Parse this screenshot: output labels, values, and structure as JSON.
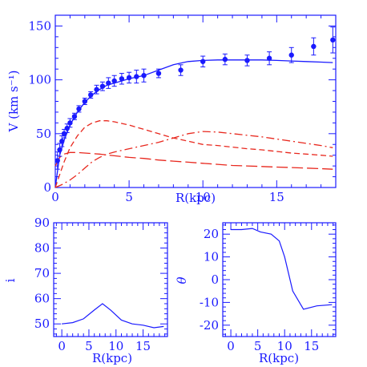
{
  "colors": {
    "axis": "#1a1aff",
    "data": "#1a1aff",
    "model": "#e8281e"
  },
  "chart_data": [
    {
      "type": "scatter",
      "panel": "rotation-curve",
      "xlabel": "R(kpc)",
      "ylabel": "V (km s⁻¹)",
      "xlim": [
        0,
        19
      ],
      "ylim": [
        0,
        160
      ],
      "xticks": [
        "0",
        "5",
        "10",
        "15"
      ],
      "yticks": [
        "0",
        "50",
        "100",
        "150"
      ],
      "grid": false,
      "observed": {
        "x": [
          0.15,
          0.3,
          0.45,
          0.6,
          0.8,
          1.0,
          1.3,
          1.6,
          2.0,
          2.4,
          2.8,
          3.2,
          3.6,
          4.0,
          4.5,
          5.0,
          5.5,
          6.0,
          7.0,
          8.5,
          10.0,
          11.5,
          13.0,
          14.5,
          16.0,
          17.5,
          18.8
        ],
        "y": [
          25,
          35,
          43,
          50,
          55,
          60,
          66,
          73,
          80,
          86,
          91,
          94,
          97,
          99,
          101,
          102,
          103,
          104,
          106,
          109,
          117,
          119,
          118,
          120,
          123,
          131,
          137
        ],
        "err": [
          8,
          6,
          5,
          4,
          4,
          4,
          3,
          3,
          3,
          3,
          4,
          4,
          5,
          5,
          5,
          5,
          6,
          6,
          4,
          5,
          5,
          5,
          5,
          6,
          7,
          8,
          12
        ]
      },
      "models": [
        {
          "style": "solid",
          "color": "#1a1aff",
          "x": [
            0,
            0.3,
            0.6,
            1.0,
            1.5,
            2.0,
            2.5,
            3.0,
            3.5,
            4.0,
            5.0,
            6.0,
            7.0,
            8.0,
            9.0,
            10.0,
            11.0,
            12.0,
            13.0,
            14.0,
            15.0,
            16.0,
            17.0,
            18.0,
            18.8
          ],
          "y": [
            0,
            30,
            44,
            58,
            70,
            79,
            86,
            91,
            95,
            97,
            101,
            104,
            109,
            114,
            117,
            118,
            118.5,
            118.5,
            118.5,
            118.5,
            118,
            117.5,
            117,
            116.5,
            116
          ]
        },
        {
          "style": "dashed",
          "color": "#e8281e",
          "x": [
            0,
            0.3,
            0.6,
            1.0,
            1.5,
            2.0,
            2.5,
            3.0,
            3.5,
            4.0,
            5.0,
            6.0,
            7.0,
            8.0,
            9.0,
            10.0,
            11.0,
            12.0,
            13.0,
            14.0,
            15.0,
            16.0,
            17.0,
            18.0,
            18.8
          ],
          "y": [
            0,
            12,
            24,
            37,
            48,
            56,
            60,
            62,
            62,
            61,
            58,
            54,
            50,
            46,
            43,
            40,
            39,
            37.5,
            36,
            35,
            33.5,
            32,
            31,
            30,
            29
          ]
        },
        {
          "style": "long-dash",
          "color": "#e8281e",
          "x": [
            0,
            0.3,
            0.6,
            1.0,
            1.5,
            2.0,
            2.5,
            3.0,
            4.0,
            5.0,
            6.0,
            7.0,
            8.0,
            9.0,
            10.0,
            11.0,
            12.0,
            13.0,
            14.0,
            15.0,
            16.0,
            17.0,
            18.0,
            18.8
          ],
          "y": [
            20,
            28,
            31,
            32.5,
            32.5,
            32,
            31.5,
            31,
            29.5,
            28,
            27,
            25.5,
            24.5,
            23.5,
            22.5,
            21.5,
            20.5,
            20,
            19.5,
            19,
            18.5,
            18,
            17.5,
            17
          ]
        },
        {
          "style": "dash-dot",
          "color": "#e8281e",
          "x": [
            0,
            0.5,
            1.0,
            1.5,
            2.0,
            2.5,
            3.0,
            3.5,
            4.0,
            5.0,
            6.0,
            7.0,
            8.0,
            9.0,
            10.0,
            11.0,
            12.0,
            13.0,
            14.0,
            15.0,
            16.0,
            17.0,
            18.0,
            18.8
          ],
          "y": [
            0,
            3,
            7,
            12,
            18,
            24,
            28,
            31,
            33,
            36,
            39,
            42,
            46,
            50,
            52,
            51.5,
            50,
            48.5,
            47,
            45,
            43,
            41,
            39,
            37
          ]
        }
      ]
    },
    {
      "type": "line",
      "panel": "inclination",
      "xlabel": "R(kpc)",
      "ylabel": "i",
      "xlim": [
        -1.5,
        19.5
      ],
      "ylim": [
        45,
        90
      ],
      "xticks": [
        "0",
        "5",
        "10",
        "15"
      ],
      "yticks": [
        "50",
        "60",
        "70",
        "80",
        "90"
      ],
      "grid": false,
      "x": [
        0,
        2,
        4,
        6,
        7.5,
        9,
        11,
        13,
        15,
        17,
        18.8
      ],
      "y": [
        50,
        50.5,
        52,
        55.5,
        58,
        55.5,
        51.5,
        50,
        49.5,
        48.5,
        49
      ]
    },
    {
      "type": "line",
      "panel": "position-angle",
      "xlabel": "R(kpc)",
      "ylabel": "θ",
      "xlim": [
        -1.5,
        19.5
      ],
      "ylim": [
        -25,
        25
      ],
      "xticks": [
        "0",
        "5",
        "10",
        "15"
      ],
      "yticks": [
        "-20",
        "-10",
        "0",
        "10",
        "20"
      ],
      "grid": false,
      "x": [
        0,
        2,
        4,
        5.5,
        7.5,
        9,
        10,
        11.5,
        13.5,
        16,
        18.8
      ],
      "y": [
        22,
        22,
        22.5,
        21,
        20,
        17,
        10,
        -5,
        -13,
        -11.5,
        -11
      ]
    }
  ]
}
